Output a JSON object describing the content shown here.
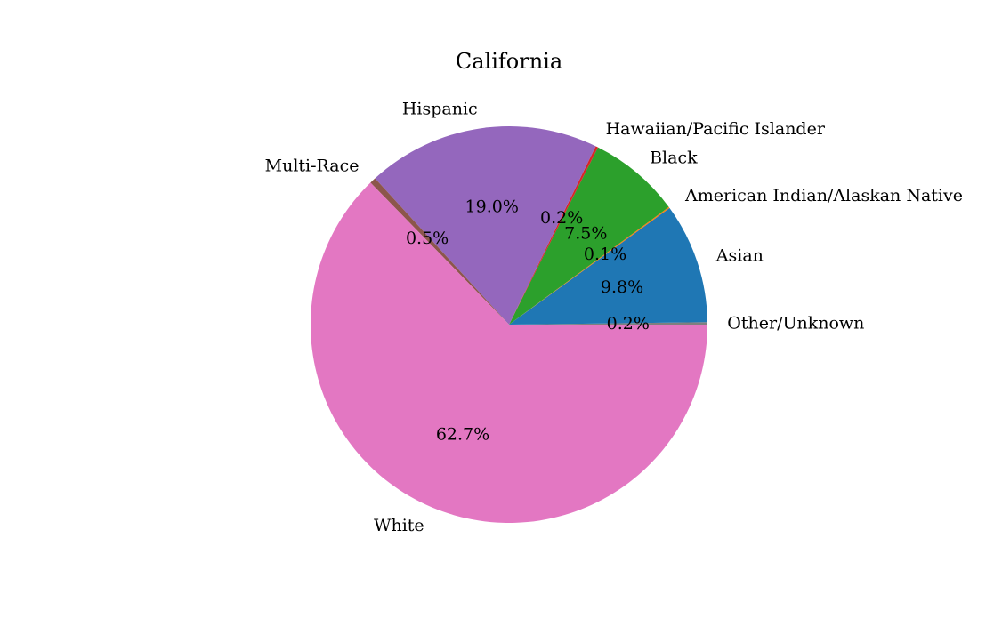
{
  "chart_data": {
    "type": "pie",
    "title": "California",
    "start_angle_deg": 0,
    "direction": "counterclockwise",
    "slices": [
      {
        "label": "Other/Unknown",
        "value": 0.2,
        "pct_text": "0.2%",
        "color": "#7f7f7f"
      },
      {
        "label": "Asian",
        "value": 9.8,
        "pct_text": "9.8%",
        "color": "#1f77b4"
      },
      {
        "label": "American Indian/Alaskan Native",
        "value": 0.1,
        "pct_text": "0.1%",
        "color": "#ff7f0e"
      },
      {
        "label": "Black",
        "value": 7.5,
        "pct_text": "7.5%",
        "color": "#2ca02c"
      },
      {
        "label": "Hawaiian/Pacific Islander",
        "value": 0.2,
        "pct_text": "0.2%",
        "color": "#d62728"
      },
      {
        "label": "Hispanic",
        "value": 19.0,
        "pct_text": "19.0%",
        "color": "#9467bd"
      },
      {
        "label": "Multi-Race",
        "value": 0.5,
        "pct_text": "0.5%",
        "color": "#8c564b"
      },
      {
        "label": "White",
        "value": 62.7,
        "pct_text": "62.7%",
        "color": "#e377c2"
      }
    ]
  }
}
